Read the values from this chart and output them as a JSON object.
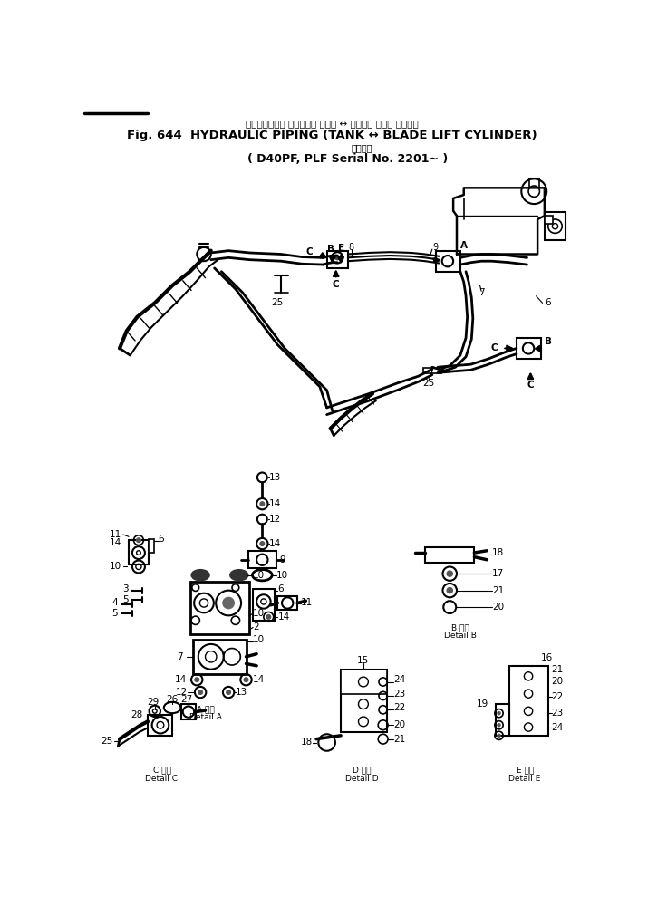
{
  "title_japanese": "ハイドロリック パイピング タンク ↔ ブレード リフト シリンダ",
  "title_english": "Fig. 644  HYDRAULIC PIPING (TANK ↔ BLADE LIFT CYLINDER)",
  "subtitle_japanese": "適用号機",
  "subtitle_english": "D40PF, PLF Serial No. 2201∼",
  "bg": "#ffffff",
  "lc": "#000000",
  "fw": 7.15,
  "fh": 9.9,
  "dpi": 100
}
